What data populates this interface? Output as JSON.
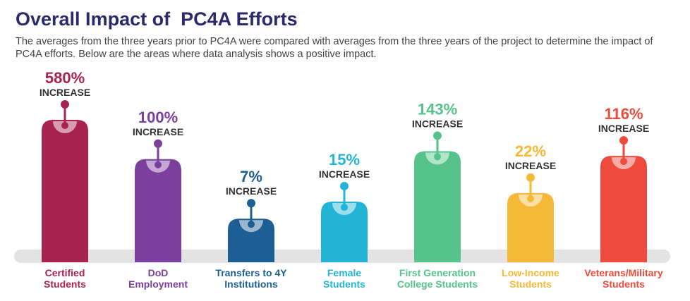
{
  "chart_data": {
    "type": "bar",
    "title": "Overall Impact of  PC4A Efforts",
    "subtitle": "The averages from the three years prior to PC4A were compared with averages from the three years of the project to determine the impact of PC4A efforts. Below are the areas where data analysis shows a positive impact.",
    "categories": [
      [
        "Certified",
        "Students"
      ],
      [
        "DoD",
        "Employment"
      ],
      [
        "Transfers to 4Y",
        "Institutions"
      ],
      [
        "Female",
        "Students"
      ],
      [
        "First Generation",
        "College Students"
      ],
      [
        "Low-Income",
        "Students"
      ],
      [
        "Veterans/Military",
        "Students"
      ]
    ],
    "values": [
      580,
      100,
      7,
      15,
      143,
      22,
      116
    ],
    "value_labels": [
      "580%",
      "100%",
      "7%",
      "15%",
      "143%",
      "22%",
      "116%"
    ],
    "value_note": "INCREASE",
    "colors": [
      "#a8234f",
      "#7b3f9e",
      "#1d5f94",
      "#22b5d6",
      "#55c38a",
      "#f6b937",
      "#ee4b3d"
    ],
    "log_scale": true
  }
}
